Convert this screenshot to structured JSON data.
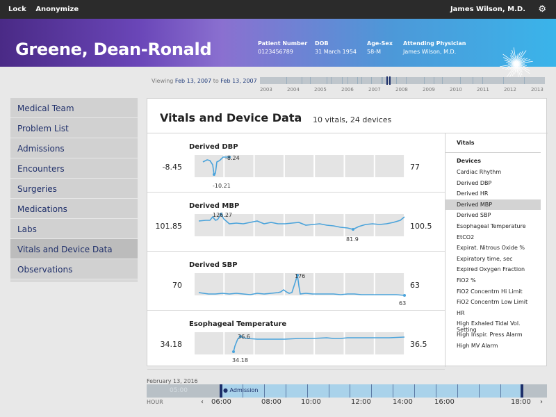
{
  "topbar": {
    "lock": "Lock",
    "anonymize": "Anonymize",
    "user": "James Wilson, M.D.",
    "gear": "⚙"
  },
  "patient": {
    "name": "Greene, Dean-Ronald",
    "number_label": "Patient Number",
    "number": "0123456789",
    "dob_label": "DOB",
    "dob": "31 March 1954",
    "agesex_label": "Age-Sex",
    "agesex": "58-M",
    "physician_label": "Attending Physician",
    "physician": "James Wilson, M.D."
  },
  "viewing": {
    "prefix": "Viewing",
    "from": "Feb 13, 2007",
    "to_word": "to",
    "to": "Feb 13, 2007"
  },
  "years": [
    "2003",
    "2004",
    "2005",
    "2006",
    "2007",
    "2008",
    "2009",
    "2010",
    "2011",
    "2012",
    "2013"
  ],
  "sidebar": {
    "items": [
      {
        "label": "Medical Team"
      },
      {
        "label": "Problem List"
      },
      {
        "label": "Admissions"
      },
      {
        "label": "Encounters"
      },
      {
        "label": "Surgeries"
      },
      {
        "label": "Medications"
      },
      {
        "label": "Labs"
      },
      {
        "label": "Vitals and Device Data"
      },
      {
        "label": "Observations"
      }
    ]
  },
  "panel": {
    "title": "Vitals and Device Data",
    "subtitle": "10 vitals, 24 devices"
  },
  "vitals": [
    {
      "name": "Derived DBP",
      "left": "-8.45",
      "right": "77",
      "labels": [
        "-8.24",
        "-10.21"
      ]
    },
    {
      "name": "Derived MBP",
      "left": "101.85",
      "right": "100.5",
      "labels": [
        "126.27",
        "81.9"
      ]
    },
    {
      "name": "Derived SBP",
      "left": "70",
      "right": "63",
      "labels": [
        "176",
        "63"
      ]
    },
    {
      "name": "Esophageal Temperature",
      "left": "34.18",
      "right": "36.5",
      "labels": [
        "36.6",
        "34.18"
      ]
    }
  ],
  "list": {
    "vitals_header": "Vitals",
    "devices_header": "Devices",
    "devices": [
      "Cardiac Rhythm",
      "Derived DBP",
      "Derived HR",
      "Derived MBP",
      "Derived SBP",
      "Esophageal Temperature",
      "EtCO2",
      "Expirat. Nitrous Oxide %",
      "Expiratory time, sec",
      "Expired Oxygen Fraction",
      "FiO2 %",
      "FiO2 Concentrn Hi Limit",
      "FiO2 Concentrn Low Limit",
      "HR",
      "High Exhaled Tidal Vol. Setting",
      "High Inspir. Press Alarm",
      "High MV Alarm"
    ],
    "selected": "Derived MBP"
  },
  "timeline": {
    "date": "February 13, 2016",
    "ghost": "05:00",
    "admission": "Admission",
    "hour_label": "HOUR",
    "prev": "‹",
    "next": "›",
    "hours": [
      "06:00",
      "08:00",
      "10:00",
      "12:00",
      "14:00",
      "16:00",
      "18:00"
    ]
  },
  "colors": {
    "accent": "#1c2f6a",
    "line": "#4aa3db",
    "nav_text": "#1f2f6a"
  }
}
